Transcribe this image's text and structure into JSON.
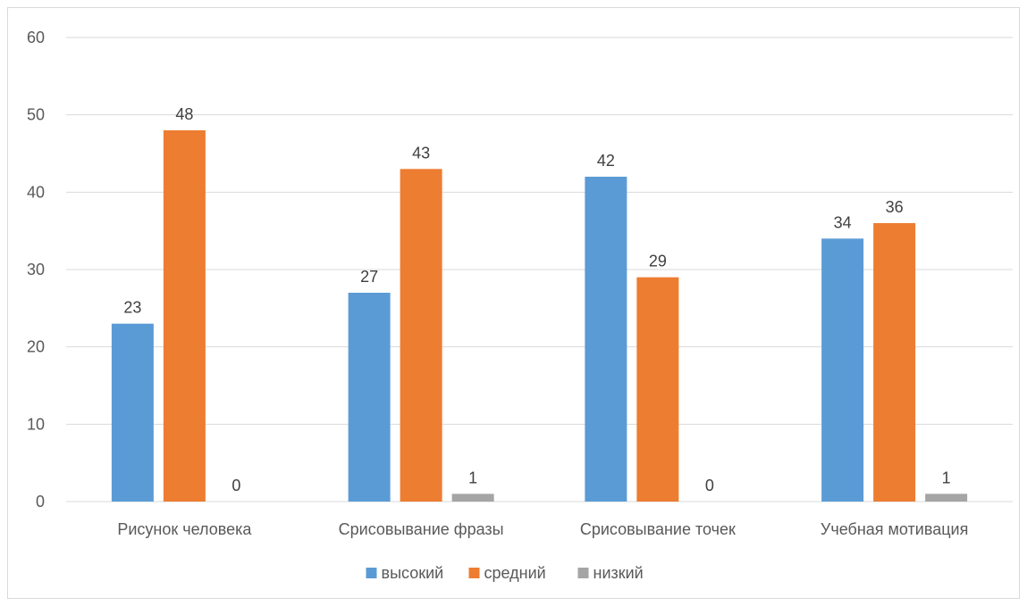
{
  "chart_data": {
    "type": "bar",
    "categories": [
      "Рисунок человека",
      "Срисовывание фразы",
      "Срисовывание точек",
      "Учебная мотивация"
    ],
    "series": [
      {
        "name": "высокий",
        "values": [
          23,
          27,
          42,
          34
        ],
        "color": "#5b9bd5"
      },
      {
        "name": "средний",
        "values": [
          48,
          43,
          29,
          36
        ],
        "color": "#ed7d31"
      },
      {
        "name": "низкий",
        "values": [
          0,
          1,
          0,
          1
        ],
        "color": "#a5a5a5"
      }
    ],
    "ylim": [
      0,
      60
    ],
    "yticks": [
      0,
      10,
      20,
      30,
      40,
      50,
      60
    ],
    "grid": true,
    "legend_position": "bottom",
    "data_labels": true
  }
}
